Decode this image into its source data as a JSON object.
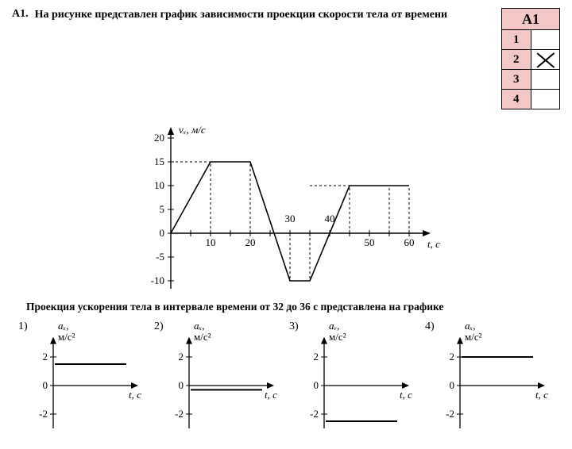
{
  "question": {
    "number": "А1.",
    "text": "На рисунке представлен график зависимости проекции скорости тела от времени",
    "subtext": "Проекция ускорения тела в интервале времени от 32 до 36 с представлена на графике"
  },
  "answer_card": {
    "title": "А1",
    "rows": [
      "1",
      "2",
      "3",
      "4"
    ],
    "marked_index": 1,
    "bg_color": "#f4c7c7"
  },
  "main_chart": {
    "y_label": "vₓ, м/с",
    "x_label": "t, с",
    "x_range": [
      0,
      65
    ],
    "x_tick_step": 10,
    "y_range": [
      -12,
      22
    ],
    "y_ticks": [
      -10,
      -5,
      0,
      5,
      10,
      15,
      20
    ],
    "x_labels_shown": [
      "10",
      "20",
      "30",
      "40",
      "50",
      "60"
    ],
    "line_points": [
      [
        0,
        0
      ],
      [
        10,
        15
      ],
      [
        20,
        15
      ],
      [
        30,
        -10
      ],
      [
        35,
        -10
      ],
      [
        45,
        10
      ],
      [
        60,
        10
      ]
    ],
    "dash_verticals_x": [
      10,
      20,
      30,
      35,
      45,
      55,
      60
    ],
    "dash_horizontals": [
      [
        0,
        15,
        20,
        15
      ],
      [
        35,
        10,
        60,
        10
      ]
    ],
    "stroke": "#000000",
    "stroke_width": 1.6,
    "dash": "3,3"
  },
  "options": [
    {
      "n": "1)",
      "label": "aₓ,\nм/с²",
      "y_ticks": [
        -2,
        0,
        2
      ],
      "x_label": "t, с",
      "line_y": 1.5
    },
    {
      "n": "2)",
      "label": "aₓ,\nм/с²",
      "y_ticks": [
        -2,
        0,
        2
      ],
      "x_label": "t, с",
      "line_y": -0.3
    },
    {
      "n": "3)",
      "label": "aᵥ,\nм/с²",
      "y_ticks": [
        -2,
        0,
        2
      ],
      "x_label": "t, с",
      "line_y": -2.5
    },
    {
      "n": "4)",
      "label": "aₓ,\nм/с²",
      "y_ticks": [
        -2,
        0,
        2
      ],
      "x_label": "t, с",
      "line_y": 2
    }
  ],
  "colors": {
    "axis": "#000000",
    "bg": "#ffffff"
  }
}
